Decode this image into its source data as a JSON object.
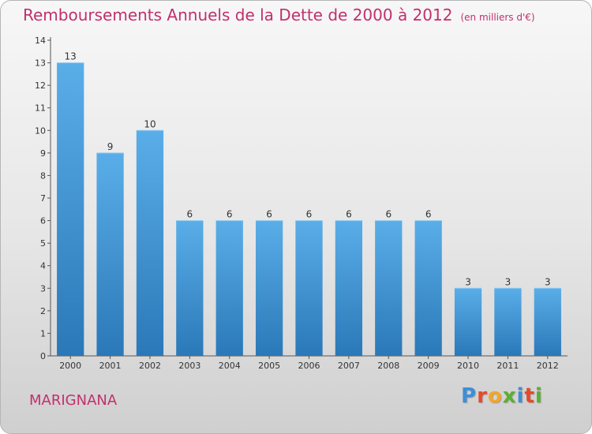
{
  "header": {
    "title": "Remboursements Annuels de la Dette de 2000 à 2012",
    "subtitle": "(en milliers d'€)"
  },
  "footer": {
    "town": "MARIGNANA",
    "logo_letters": [
      "P",
      "r",
      "o",
      "x",
      "i",
      "t",
      "i"
    ],
    "logo_colors": [
      "#3d8fd6",
      "#e8482a",
      "#f5a623",
      "#5ab031",
      "#3d8fd6",
      "#e8482a",
      "#5ab031"
    ]
  },
  "colors": {
    "bar_top": "#5aaee8",
    "bar_bottom": "#2a78b8",
    "accent": "#c1306c"
  },
  "chart_data": {
    "type": "bar",
    "categories": [
      "2000",
      "2001",
      "2002",
      "2003",
      "2004",
      "2005",
      "2006",
      "2007",
      "2008",
      "2009",
      "2010",
      "2011",
      "2012"
    ],
    "values": [
      13,
      9,
      10,
      6,
      6,
      6,
      6,
      6,
      6,
      6,
      3,
      3,
      3
    ],
    "ylim": [
      0,
      14
    ],
    "yticks": [
      0,
      1,
      2,
      3,
      4,
      5,
      6,
      7,
      8,
      9,
      10,
      11,
      12,
      13,
      14
    ],
    "grid": false,
    "data_labels": true
  }
}
